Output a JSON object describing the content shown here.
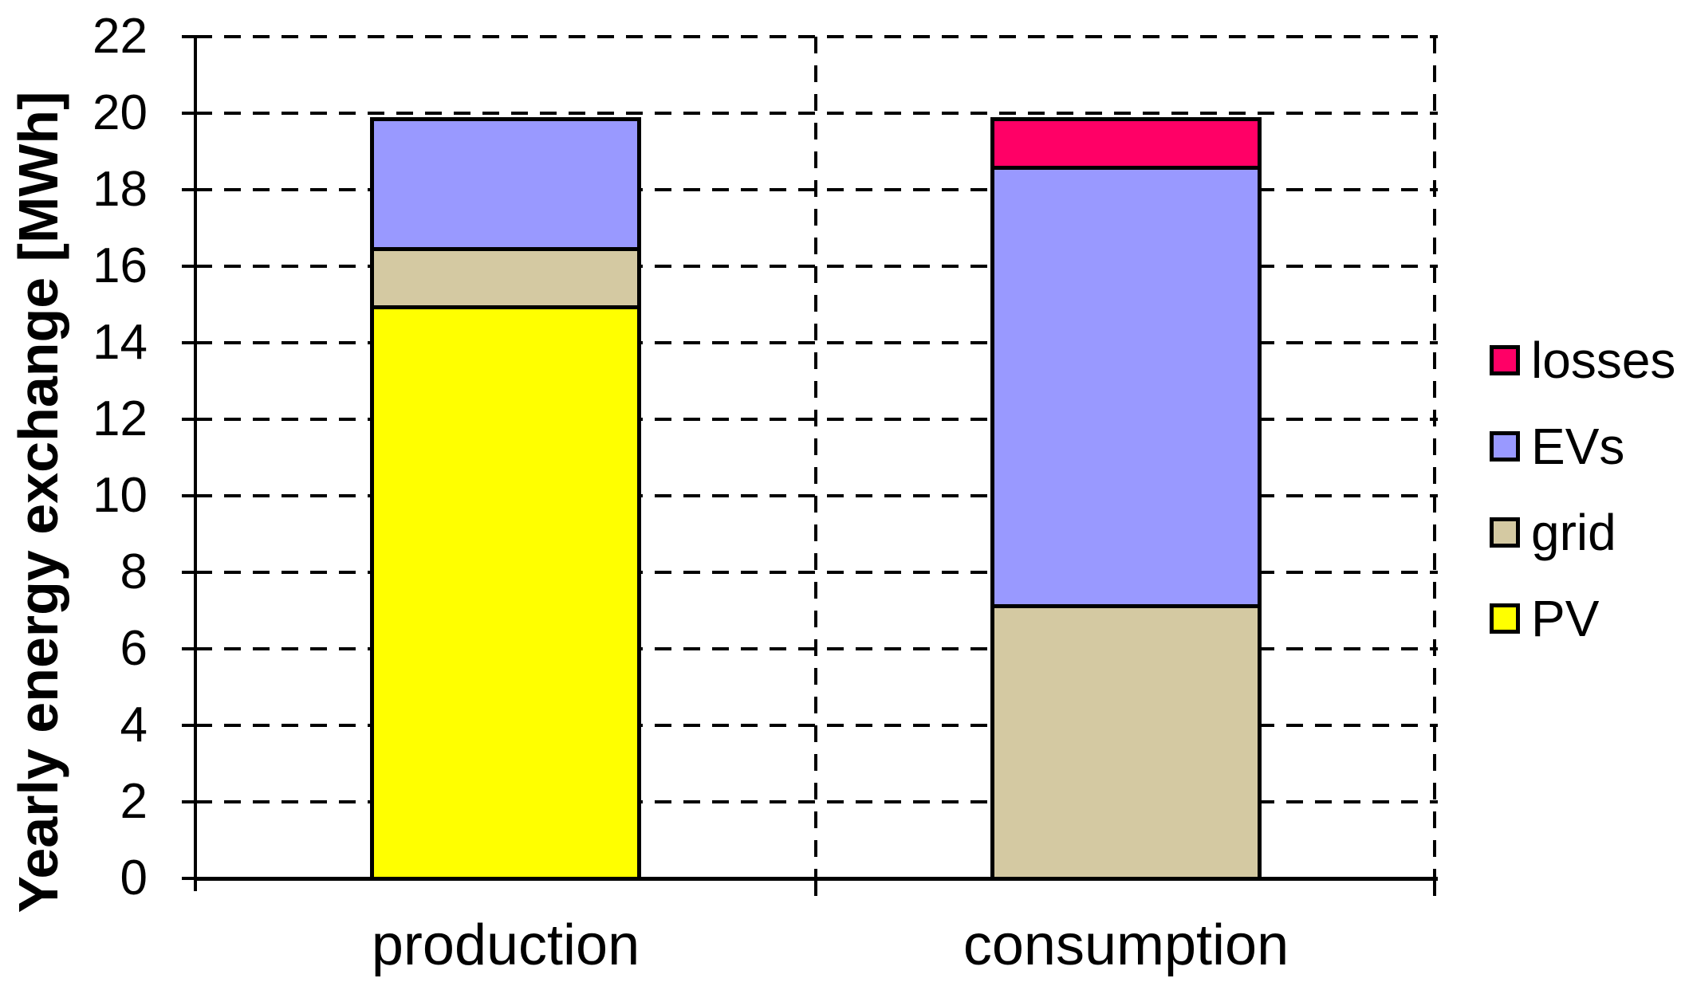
{
  "chart_data": {
    "type": "bar",
    "stacked": true,
    "title": "",
    "xlabel": "",
    "ylabel": "Yearly energy exchange [MWh]",
    "categories": [
      "production",
      "consumption"
    ],
    "series": [
      {
        "name": "PV",
        "color": "#FFFF00",
        "values": [
          15.1,
          0
        ]
      },
      {
        "name": "grid",
        "color": "#D4C9A2",
        "values": [
          1.45,
          7.15
        ]
      },
      {
        "name": "EVs",
        "color": "#9999FF",
        "values": [
          3.35,
          11.55
        ]
      },
      {
        "name": "losses",
        "color": "#FF0066",
        "values": [
          0,
          1.2
        ]
      }
    ],
    "stack_order": "bottom-to-top as listed in series",
    "bar_totals": [
      19.9,
      19.9
    ],
    "ylim": [
      0,
      22
    ],
    "ytick_step": 2,
    "yticks": [
      0,
      2,
      4,
      6,
      8,
      10,
      12,
      14,
      16,
      18,
      20,
      22
    ],
    "grid": "horizontal dashed gridlines at every ytick; dashed vertical category separator and right border",
    "legend_position": "right",
    "legend_order": [
      "losses",
      "EVs",
      "grid",
      "PV"
    ]
  },
  "colors": {
    "losses": "#FF0066",
    "EVs": "#9999FF",
    "grid": "#D4C9A2",
    "PV": "#FFFF00",
    "axis": "#000000",
    "background": "#FFFFFF"
  }
}
